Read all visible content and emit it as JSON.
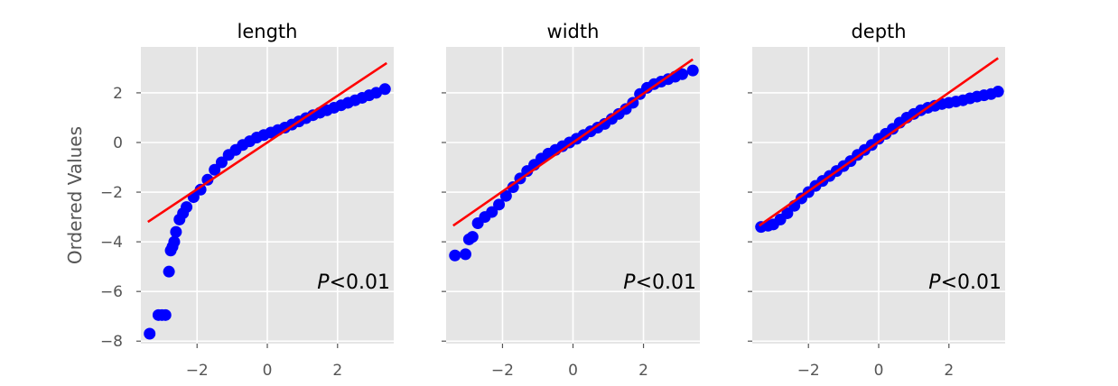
{
  "chart_data": [
    {
      "type": "scatter",
      "title": "length",
      "ylabel": "Ordered Values",
      "xlabel": "",
      "xlim": [
        -3.6,
        3.6
      ],
      "ylim": [
        -8.1,
        3.85
      ],
      "xticks": [
        -2,
        0,
        2
      ],
      "xtick_labels": [
        "−2",
        "0",
        "2"
      ],
      "yticks": [
        2,
        0,
        -2,
        -4,
        -6,
        -8
      ],
      "ytick_labels": [
        "2",
        "0",
        "−2",
        "−4",
        "−6",
        "−8"
      ],
      "grid": true,
      "annotation_italic": "P",
      "annotation_rest": "<0.01",
      "fit_line": {
        "x": [
          -3.4,
          3.4
        ],
        "y": [
          -3.2,
          3.2
        ],
        "color": "#ff0000"
      },
      "points_color": "#0000ff",
      "series": [
        {
          "x": [
            -3.35,
            -3.1,
            -3.0,
            -2.9,
            -2.8,
            -2.75,
            -2.7,
            -2.65,
            -2.6,
            -2.5,
            -2.4,
            -2.3,
            -2.1,
            -1.9,
            -1.7,
            -1.5,
            -1.3,
            -1.1,
            -0.9,
            -0.7,
            -0.5,
            -0.3,
            -0.1,
            0.1,
            0.3,
            0.5,
            0.7,
            0.9,
            1.1,
            1.3,
            1.5,
            1.7,
            1.9,
            2.1,
            2.3,
            2.5,
            2.7,
            2.9,
            3.1,
            3.35
          ],
          "y": [
            -7.7,
            -6.95,
            -6.95,
            -6.95,
            -5.2,
            -4.35,
            -4.2,
            -4.0,
            -3.6,
            -3.1,
            -2.85,
            -2.6,
            -2.2,
            -1.9,
            -1.5,
            -1.1,
            -0.8,
            -0.5,
            -0.3,
            -0.1,
            0.05,
            0.2,
            0.3,
            0.4,
            0.5,
            0.6,
            0.72,
            0.85,
            0.98,
            1.1,
            1.2,
            1.3,
            1.4,
            1.5,
            1.6,
            1.7,
            1.8,
            1.9,
            2.0,
            2.15
          ]
        }
      ]
    },
    {
      "type": "scatter",
      "title": "width",
      "xlim": [
        -3.6,
        3.6
      ],
      "ylim": [
        -8.1,
        3.85
      ],
      "xticks": [
        -2,
        0,
        2
      ],
      "xtick_labels": [
        "−2",
        "0",
        "2"
      ],
      "yticks": [
        2,
        0,
        -2,
        -4,
        -6,
        -8
      ],
      "grid": true,
      "annotation_italic": "P",
      "annotation_rest": "<0.01",
      "fit_line": {
        "x": [
          -3.4,
          3.4
        ],
        "y": [
          -3.35,
          3.35
        ],
        "color": "#ff0000"
      },
      "points_color": "#0000ff",
      "series": [
        {
          "x": [
            -3.35,
            -3.05,
            -2.95,
            -2.85,
            -2.7,
            -2.5,
            -2.3,
            -2.1,
            -1.9,
            -1.7,
            -1.5,
            -1.3,
            -1.1,
            -0.9,
            -0.7,
            -0.5,
            -0.3,
            -0.1,
            0.1,
            0.3,
            0.5,
            0.7,
            0.9,
            1.1,
            1.3,
            1.5,
            1.7,
            1.9,
            2.1,
            2.3,
            2.5,
            2.7,
            2.9,
            3.1,
            3.4
          ],
          "y": [
            -4.55,
            -4.5,
            -3.9,
            -3.8,
            -3.25,
            -3.0,
            -2.8,
            -2.5,
            -2.15,
            -1.8,
            -1.45,
            -1.15,
            -0.9,
            -0.65,
            -0.45,
            -0.3,
            -0.15,
            0.0,
            0.15,
            0.3,
            0.45,
            0.6,
            0.75,
            0.95,
            1.15,
            1.35,
            1.6,
            1.95,
            2.2,
            2.35,
            2.45,
            2.55,
            2.65,
            2.75,
            2.9
          ]
        }
      ]
    },
    {
      "type": "scatter",
      "title": "depth",
      "xlim": [
        -3.6,
        3.6
      ],
      "ylim": [
        -8.1,
        3.85
      ],
      "xticks": [
        -2,
        0,
        2
      ],
      "xtick_labels": [
        "−2",
        "0",
        "2"
      ],
      "yticks": [
        2,
        0,
        -2,
        -4,
        -6,
        -8
      ],
      "grid": true,
      "annotation_italic": "P",
      "annotation_rest": "<0.01",
      "fit_line": {
        "x": [
          -3.4,
          3.4
        ],
        "y": [
          -3.35,
          3.4
        ],
        "color": "#ff0000"
      },
      "points_color": "#0000ff",
      "series": [
        {
          "x": [
            -3.35,
            -3.15,
            -3.0,
            -2.8,
            -2.6,
            -2.4,
            -2.2,
            -2.0,
            -1.8,
            -1.6,
            -1.4,
            -1.2,
            -1.0,
            -0.8,
            -0.6,
            -0.4,
            -0.2,
            0.0,
            0.2,
            0.4,
            0.6,
            0.8,
            1.0,
            1.2,
            1.4,
            1.6,
            1.8,
            2.0,
            2.2,
            2.4,
            2.6,
            2.8,
            3.0,
            3.2,
            3.4
          ],
          "y": [
            -3.4,
            -3.35,
            -3.3,
            -3.1,
            -2.85,
            -2.55,
            -2.25,
            -2.0,
            -1.75,
            -1.55,
            -1.35,
            -1.15,
            -0.95,
            -0.75,
            -0.5,
            -0.3,
            -0.1,
            0.15,
            0.35,
            0.55,
            0.8,
            1.0,
            1.15,
            1.3,
            1.4,
            1.48,
            1.55,
            1.6,
            1.65,
            1.7,
            1.78,
            1.85,
            1.9,
            1.95,
            2.05
          ]
        }
      ]
    }
  ]
}
